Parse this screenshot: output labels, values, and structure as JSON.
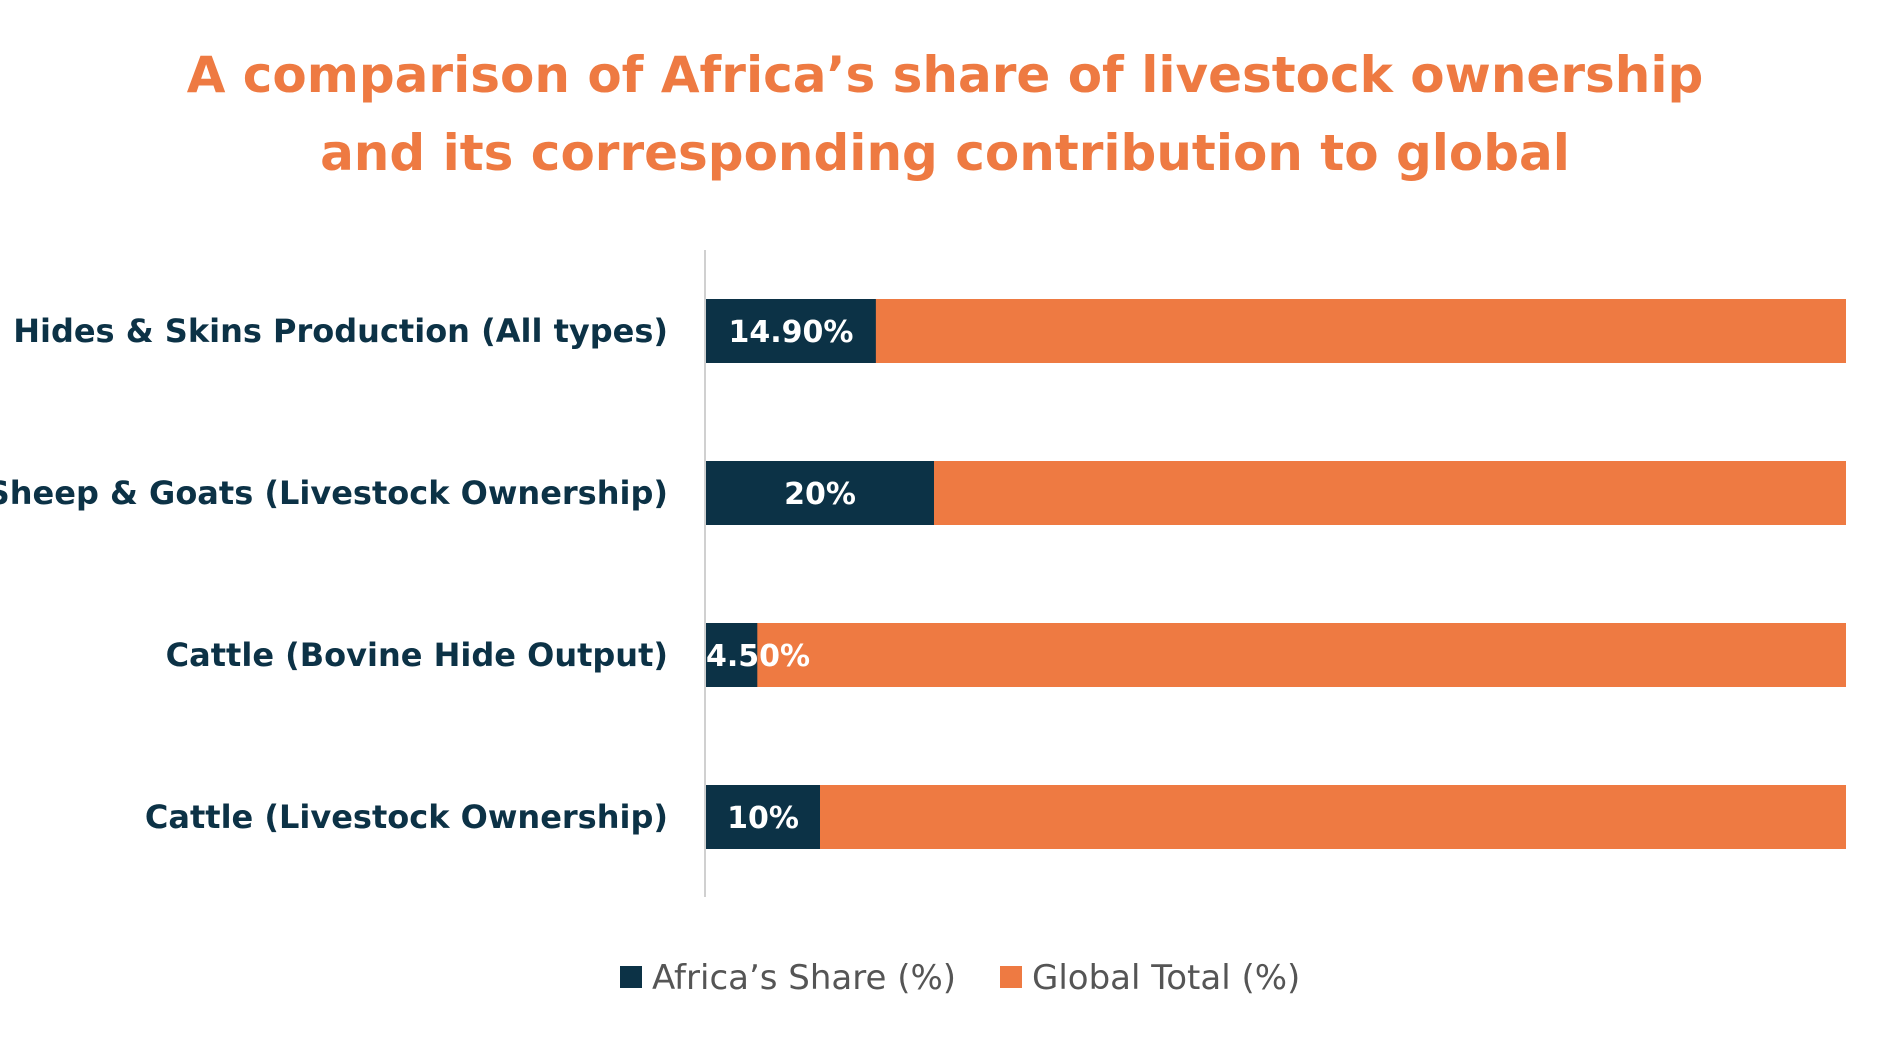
{
  "chart_data": {
    "type": "bar",
    "orientation": "horizontal",
    "stacked": true,
    "title": "A comparison of Africa’s share of livestock ownership and its corresponding contribution to global",
    "title_lines": [
      "A comparison of Africa’s share of livestock ownership",
      "and its corresponding contribution to global"
    ],
    "categories": [
      "Hides & Skins Production (All types)",
      "Sheep & Goats (Livestock Ownership)",
      "Cattle (Bovine Hide Output)",
      "Cattle (Livestock Ownership)"
    ],
    "series": [
      {
        "name": "Africa’s Share (%)",
        "color": "#0C3246",
        "values": [
          14.9,
          20,
          4.5,
          10
        ],
        "labels": [
          "14.90%",
          "20%",
          "4.50%",
          "10%"
        ]
      },
      {
        "name": "Global Total (%)",
        "color": "#EE7A42",
        "values": [
          100,
          100,
          100,
          100
        ]
      }
    ],
    "xlim": [
      0,
      120
    ],
    "xlabel": "",
    "ylabel": "",
    "grid": false,
    "legend": "bottom"
  }
}
